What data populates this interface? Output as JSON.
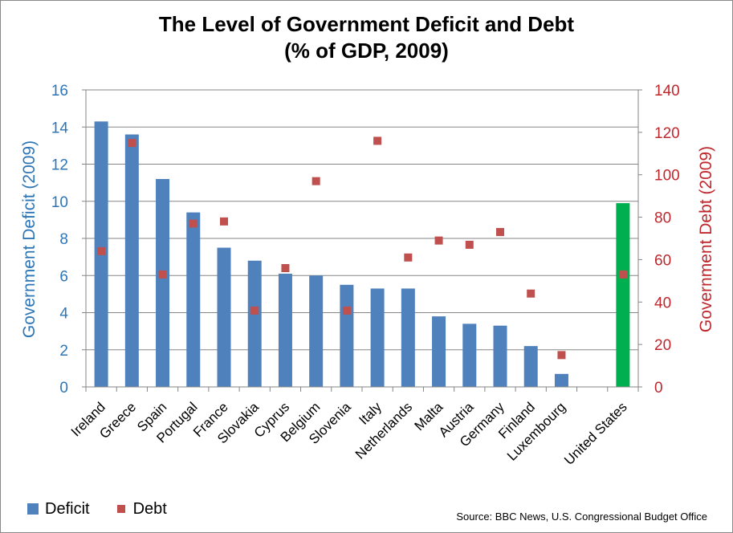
{
  "chart_data": {
    "type": "bar",
    "title_line1": "The Level of Government Deficit and Debt",
    "title_line2": "(% of GDP, 2009)",
    "categories": [
      "Ireland",
      "Greece",
      "Spain",
      "Portugal",
      "France",
      "Slovakia",
      "Cyprus",
      "Belgium",
      "Slovenia",
      "Italy",
      "Netherlands",
      "Malta",
      "Austria",
      "Germany",
      "Finland",
      "Luxembourg",
      "",
      "United States"
    ],
    "series": [
      {
        "name": "Deficit",
        "axis": "left",
        "kind": "bar",
        "values": [
          14.3,
          13.6,
          11.2,
          9.4,
          7.5,
          6.8,
          6.1,
          6.0,
          5.5,
          5.3,
          5.3,
          3.8,
          3.4,
          3.3,
          2.2,
          0.7,
          null,
          9.9
        ],
        "color": "#4f81bd",
        "highlight_color": "#00b050",
        "highlight_index": 17
      },
      {
        "name": "Debt",
        "axis": "right",
        "kind": "scatter",
        "values": [
          64,
          115,
          53,
          77,
          78,
          36,
          56,
          97,
          36,
          116,
          61,
          69,
          67,
          73,
          44,
          15,
          null,
          53
        ],
        "color": "#c0504d"
      }
    ],
    "ylabel_left": "Government Deficit (2009)",
    "ylabel_right": "Government Debt (2009)",
    "ylim_left": [
      0,
      16
    ],
    "ylim_right": [
      0,
      140
    ],
    "yticks_left": [
      0,
      2,
      4,
      6,
      8,
      10,
      12,
      14,
      16
    ],
    "yticks_right": [
      0,
      20,
      40,
      60,
      80,
      100,
      120,
      140
    ],
    "grid": true,
    "legend_position": "bottom-left",
    "source": "Source:  BBC News, U.S. Congressional Budget Office"
  }
}
